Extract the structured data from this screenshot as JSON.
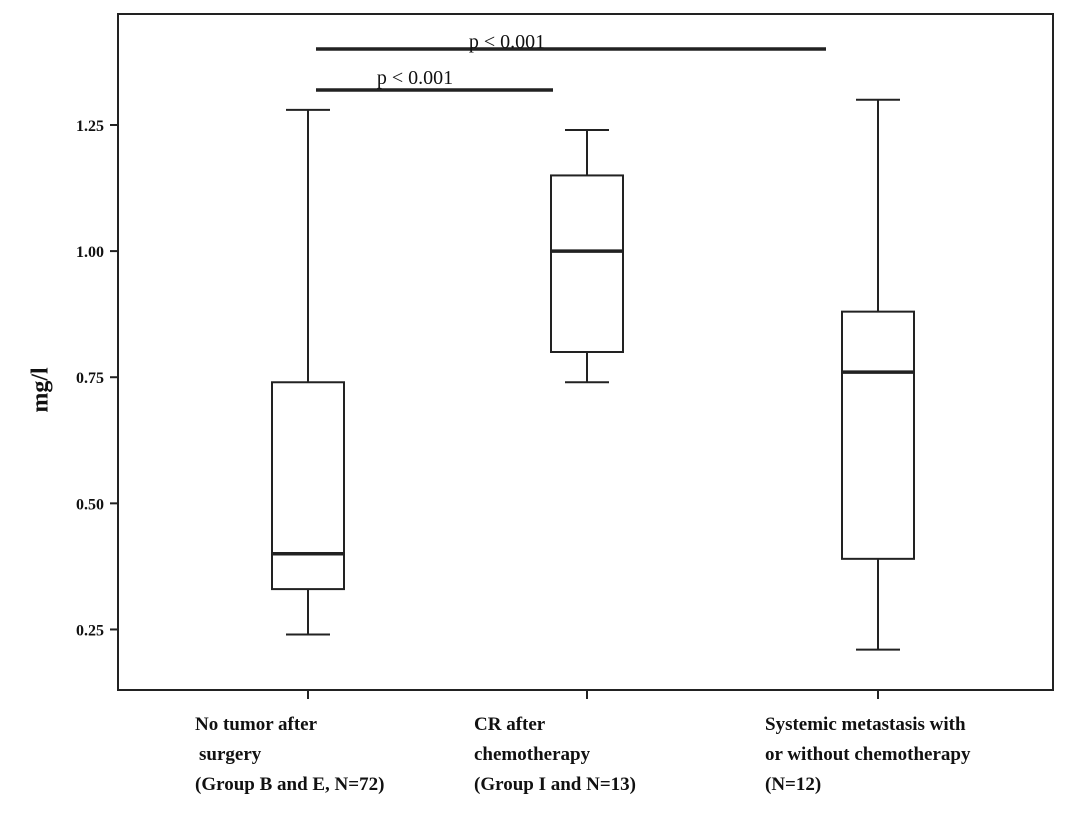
{
  "chart_data": {
    "type": "box",
    "y_label": "mg/l",
    "categories": [
      [
        "No tumor after",
        "surgery",
        "(Group B and E, N=72)"
      ],
      [
        "CR after",
        "chemotherapy",
        "(Group I and N=13)"
      ],
      [
        "Systemic metastasis with",
        "or without chemotherapy",
        "(N=12)"
      ]
    ],
    "boxes": [
      {
        "min": 0.24,
        "q1": 0.33,
        "median": 0.4,
        "q3": 0.74,
        "max": 1.28
      },
      {
        "min": 0.74,
        "q1": 0.8,
        "median": 1.0,
        "q3": 1.15,
        "max": 1.24
      },
      {
        "min": 0.21,
        "q1": 0.39,
        "median": 0.76,
        "q3": 0.88,
        "max": 1.3
      }
    ],
    "annotations": [
      {
        "label": "p < 0.001"
      },
      {
        "label": "p < 0.001"
      }
    ],
    "ylim": [
      0.13,
      1.47
    ],
    "yticks": [
      0.25,
      {
        "value": 0.5,
        "label": "0.50"
      },
      0.75,
      {
        "value": 1.0,
        "label": "1.00"
      },
      1.25
    ],
    "color": "#ffffff"
  }
}
